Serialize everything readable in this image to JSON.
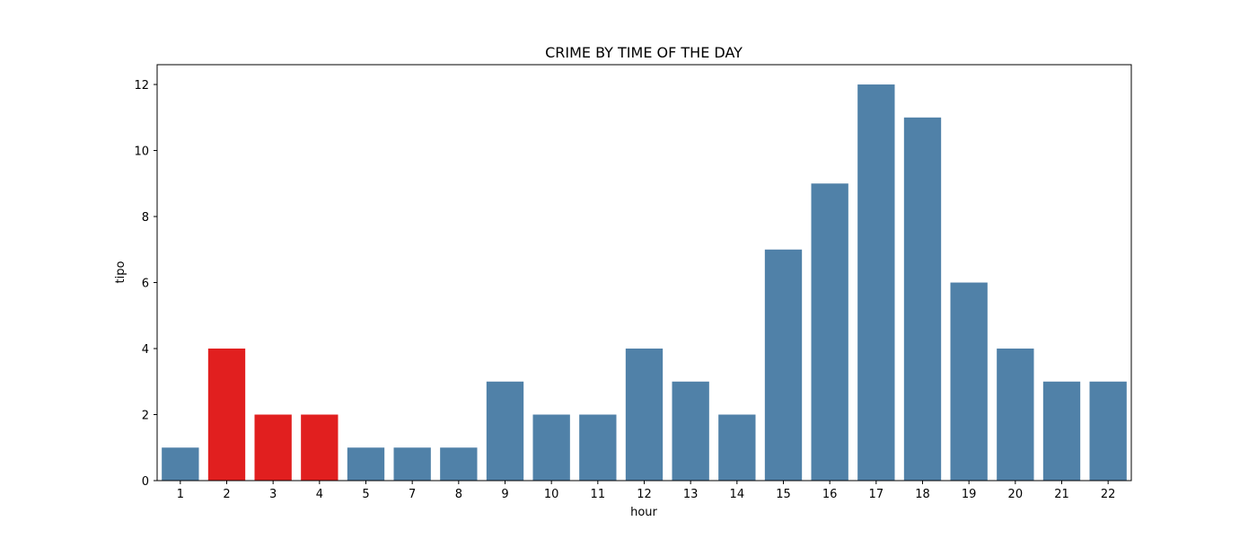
{
  "chart_data": {
    "type": "bar",
    "title": "CRIME BY TIME OF THE DAY",
    "xlabel": "hour",
    "ylabel": "tipo",
    "categories": [
      "1",
      "2",
      "3",
      "4",
      "5",
      "7",
      "8",
      "9",
      "10",
      "11",
      "12",
      "13",
      "14",
      "15",
      "16",
      "17",
      "18",
      "19",
      "20",
      "21",
      "22"
    ],
    "values": [
      1,
      4,
      2,
      2,
      1,
      1,
      1,
      3,
      2,
      2,
      4,
      3,
      2,
      7,
      9,
      12,
      11,
      6,
      4,
      3,
      3
    ],
    "bar_colors": [
      "#5081a8",
      "#e11f1f",
      "#e11f1f",
      "#e11f1f",
      "#5081a8",
      "#5081a8",
      "#5081a8",
      "#5081a8",
      "#5081a8",
      "#5081a8",
      "#5081a8",
      "#5081a8",
      "#5081a8",
      "#5081a8",
      "#5081a8",
      "#5081a8",
      "#5081a8",
      "#5081a8",
      "#5081a8",
      "#5081a8",
      "#5081a8"
    ],
    "ylim": [
      0,
      12.6
    ],
    "yticks": [
      0,
      2,
      4,
      6,
      8,
      10,
      12
    ],
    "grid": false,
    "legend": "none"
  }
}
